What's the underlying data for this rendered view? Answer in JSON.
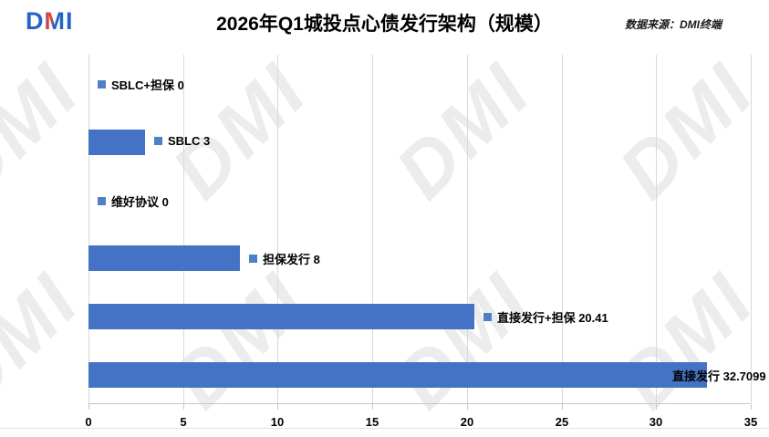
{
  "header": {
    "logo": "DMI",
    "title": "2026年Q1城投点心债发行架构（规模）",
    "source": "数据来源：DMI终端"
  },
  "watermark": {
    "text": "DMI"
  },
  "colors": {
    "bar": "#4472C4",
    "legend_key": "#4E81C4",
    "gridline": "#d9d9d9",
    "watermark": "#ececec",
    "logo_blue": "#2563c8",
    "logo_red": "#e8432e"
  },
  "chart_data": {
    "type": "bar",
    "orientation": "horizontal",
    "title": "2026年Q1城投点心债发行架构（规模）",
    "order": "top-to-bottom",
    "categories": [
      "SBLC+担保",
      "SBLC",
      "维好协议",
      "担保发行",
      "直接发行+担保",
      "直接发行"
    ],
    "values": [
      0,
      3,
      0,
      8,
      20.41,
      32.7099
    ],
    "bar_labels": [
      "SBLC+担保 0",
      "SBLC 3",
      "维好协议 0",
      "担保发行 8",
      "直接发行+担保 20.41",
      "直接发行 32.7099"
    ],
    "label_inside": [
      false,
      false,
      false,
      false,
      false,
      true
    ],
    "xlabel": "",
    "ylabel": "",
    "xlim": [
      0,
      35
    ],
    "xticks": [
      0,
      5,
      10,
      15,
      20,
      25,
      30,
      35
    ],
    "grid": "vertical",
    "legend": "none"
  }
}
